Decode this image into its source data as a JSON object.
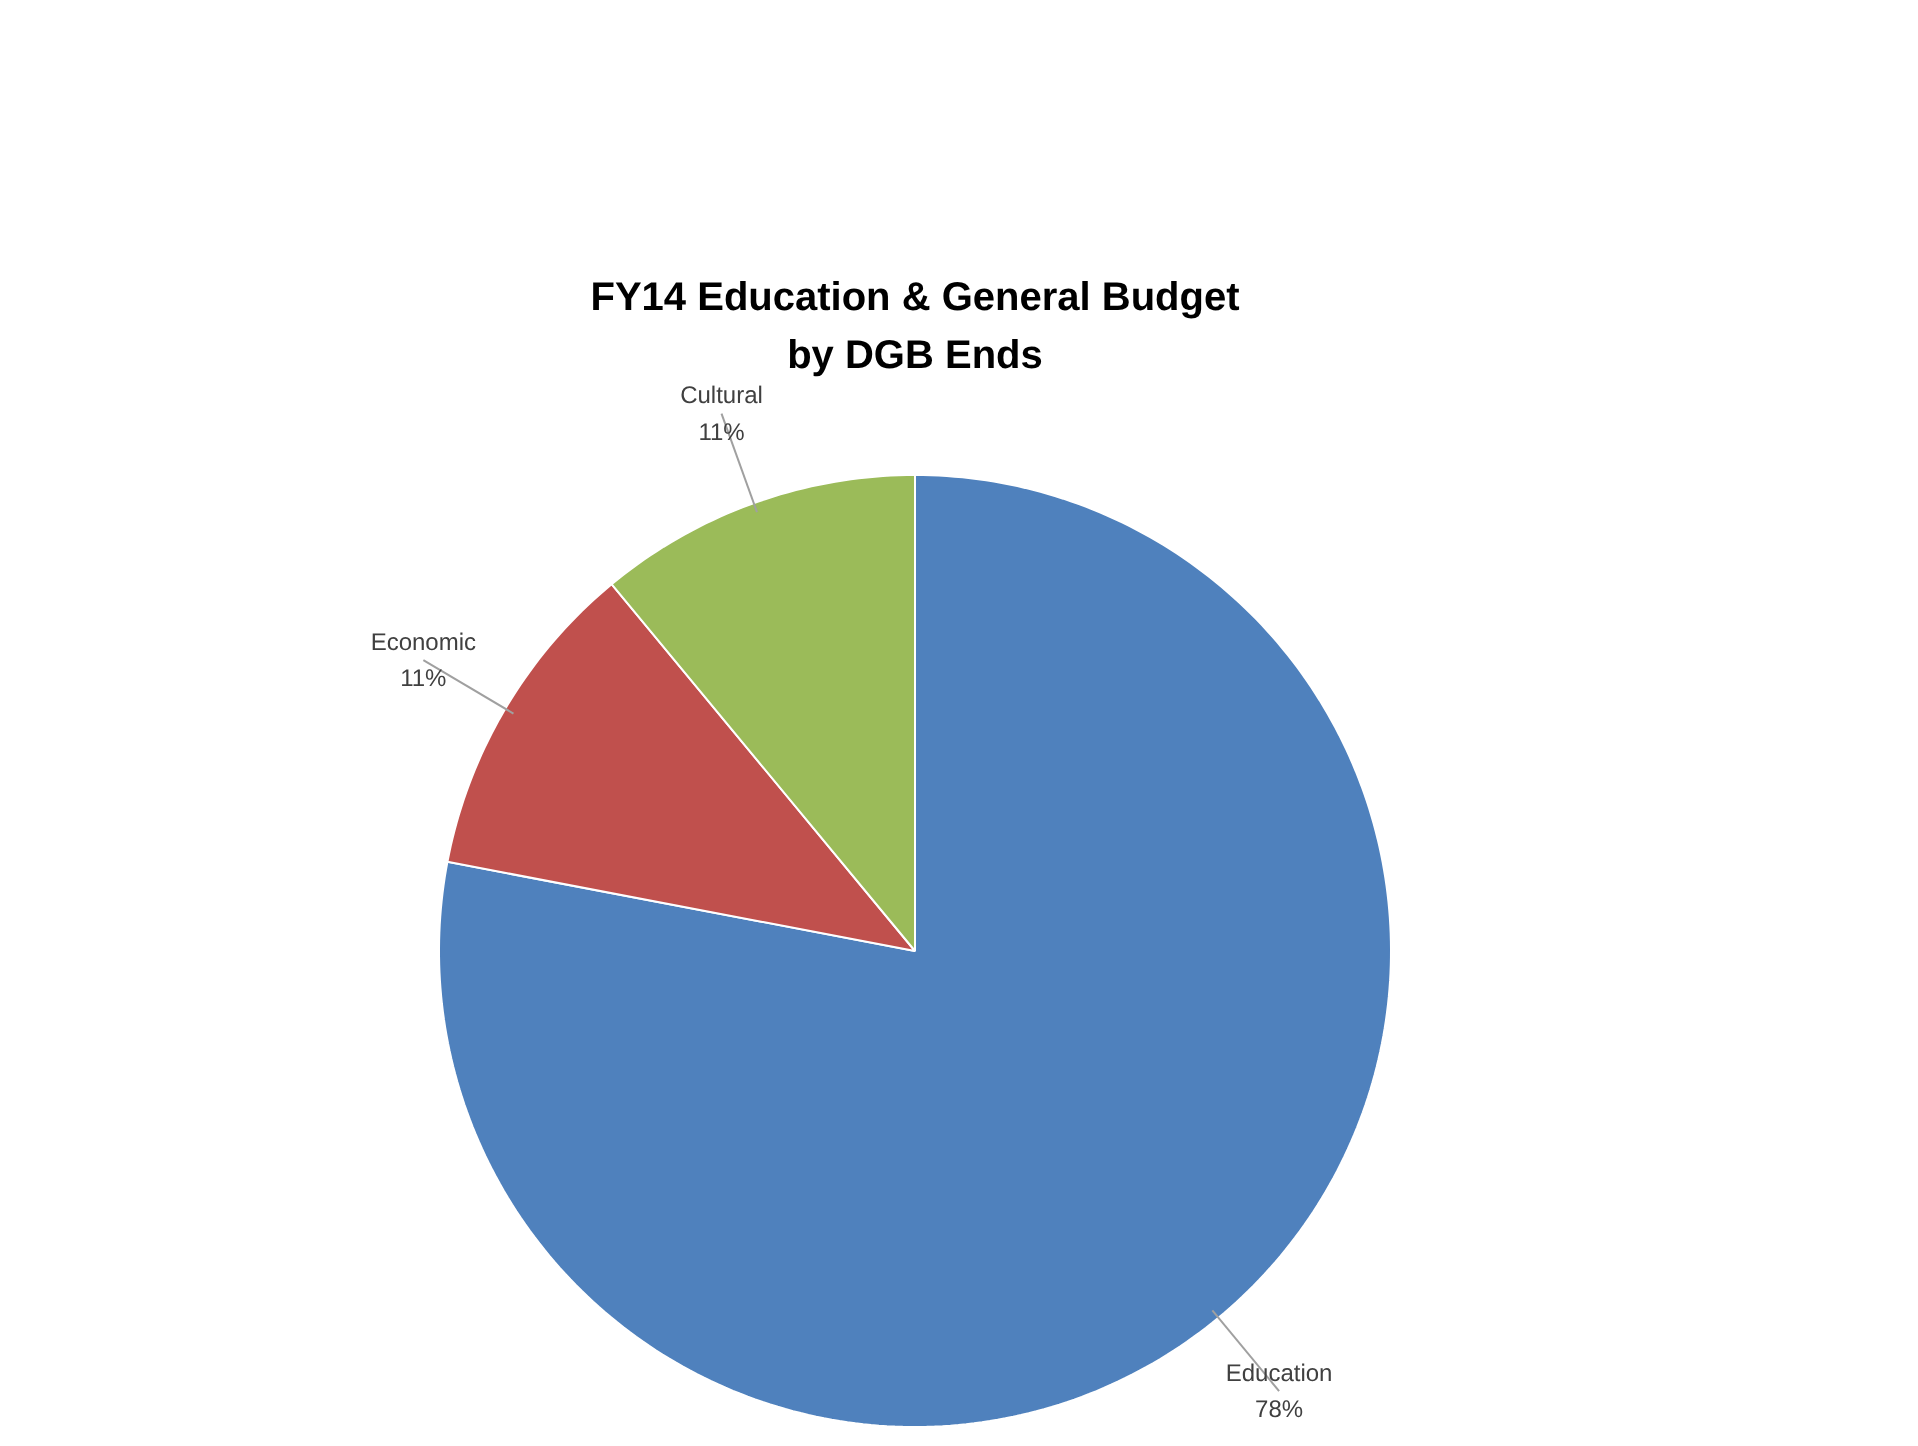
{
  "chart_data": {
    "type": "pie",
    "title": "FY14 Education & General Budget\nby DGB Ends",
    "categories": [
      "Education",
      "Economic",
      "Cultural"
    ],
    "values": [
      78,
      11,
      11
    ],
    "colors": [
      "#4f81bd",
      "#c0504d",
      "#9bbb59"
    ],
    "value_labels": [
      "78%",
      "11%",
      "11%"
    ]
  }
}
